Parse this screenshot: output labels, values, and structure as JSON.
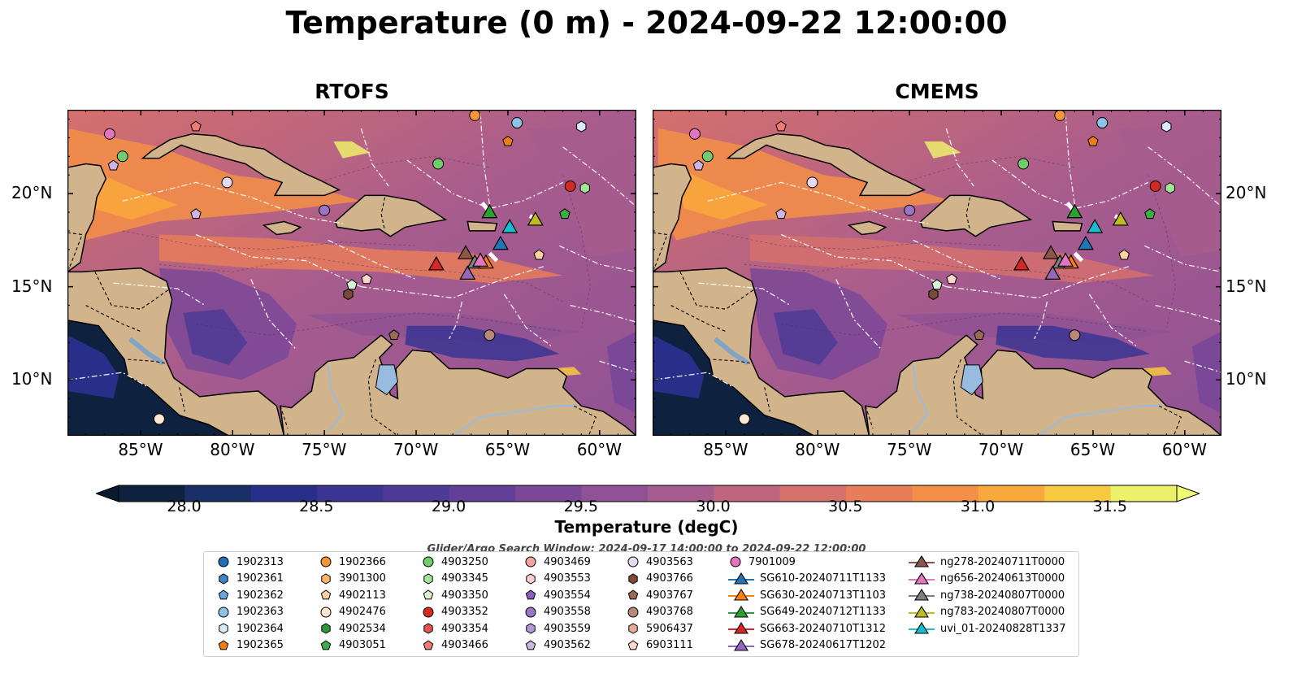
{
  "title": "Temperature (0 m) - 2024-09-22 12:00:00",
  "panels": [
    {
      "title": "RTOFS"
    },
    {
      "title": "CMEMS"
    }
  ],
  "axes": {
    "lon_ticks": [
      "85°W",
      "80°W",
      "75°W",
      "70°W",
      "65°W",
      "60°W"
    ],
    "lat_ticks": [
      "20°N",
      "15°N",
      "10°N"
    ]
  },
  "colorbar": {
    "label": "Temperature (degC)",
    "min": 28.0,
    "max": 31.5,
    "ticks": [
      "28.0",
      "28.5",
      "29.0",
      "29.5",
      "30.0",
      "30.5",
      "31.0",
      "31.5"
    ],
    "colors": [
      "#0e2240",
      "#1a2f66",
      "#272f88",
      "#3a3593",
      "#4e3b97",
      "#643f98",
      "#7b4898",
      "#905294",
      "#a75c8e",
      "#bf6580",
      "#d5706d",
      "#e87d5a",
      "#f48f47",
      "#f9a83c",
      "#f7c940",
      "#edf06b"
    ]
  },
  "search_window": "Glider/Argo Search Window: 2024-09-17 14:00:00 to 2024-09-22 12:00:00",
  "legend": {
    "argo": [
      {
        "label": "1902313",
        "marker": "circle",
        "color": "#1f6fb4"
      },
      {
        "label": "1902361",
        "marker": "hexagon",
        "color": "#3f86c6"
      },
      {
        "label": "1902362",
        "marker": "pentagon",
        "color": "#6aa6dc"
      },
      {
        "label": "1902363",
        "marker": "circle",
        "color": "#8ec3e8"
      },
      {
        "label": "1902364",
        "marker": "hexagon",
        "color": "#d7ebf8"
      },
      {
        "label": "1902365",
        "marker": "pentagon",
        "color": "#f07d12"
      },
      {
        "label": "1902366",
        "marker": "circle",
        "color": "#f7953a"
      },
      {
        "label": "3901300",
        "marker": "hexagon",
        "color": "#fbb46a"
      },
      {
        "label": "4902113",
        "marker": "pentagon",
        "color": "#fdd0a2"
      },
      {
        "label": "4902476",
        "marker": "circle",
        "color": "#fde8cf"
      },
      {
        "label": "4902534",
        "marker": "hexagon",
        "color": "#2a9a36"
      },
      {
        "label": "4903051",
        "marker": "pentagon",
        "color": "#3cae46"
      },
      {
        "label": "4903250",
        "marker": "circle",
        "color": "#6fce6a"
      },
      {
        "label": "4903345",
        "marker": "hexagon",
        "color": "#a3e49a"
      },
      {
        "label": "4903350",
        "marker": "pentagon",
        "color": "#d9f5cf"
      },
      {
        "label": "4903352",
        "marker": "circle",
        "color": "#d42a26"
      },
      {
        "label": "4903354",
        "marker": "hexagon",
        "color": "#e25454"
      },
      {
        "label": "4903466",
        "marker": "pentagon",
        "color": "#ef7a76"
      },
      {
        "label": "4903469",
        "marker": "circle",
        "color": "#f5a3a0"
      },
      {
        "label": "4903553",
        "marker": "hexagon",
        "color": "#fbcfcd"
      },
      {
        "label": "4903554",
        "marker": "pentagon",
        "color": "#8c5fba"
      },
      {
        "label": "4903558",
        "marker": "circle",
        "color": "#9c74c6"
      },
      {
        "label": "4903559",
        "marker": "hexagon",
        "color": "#b596d6"
      },
      {
        "label": "4903562",
        "marker": "pentagon",
        "color": "#cdb5e4"
      },
      {
        "label": "4903563",
        "marker": "circle",
        "color": "#e6d9f2"
      },
      {
        "label": "4903766",
        "marker": "hexagon",
        "color": "#7a4a36"
      },
      {
        "label": "4903767",
        "marker": "pentagon",
        "color": "#996a56"
      },
      {
        "label": "4903768",
        "marker": "circle",
        "color": "#b98878"
      },
      {
        "label": "5906437",
        "marker": "hexagon",
        "color": "#e6aa99"
      },
      {
        "label": "6903111",
        "marker": "pentagon",
        "color": "#fad7c9"
      },
      {
        "label": "7901009",
        "marker": "circle",
        "color": "#e374c2"
      }
    ],
    "gliders": [
      {
        "label": "SG610-20240711T1133",
        "color": "#1f77b4"
      },
      {
        "label": "SG630-20240713T1103",
        "color": "#ff7f0e"
      },
      {
        "label": "SG649-20240712T1133",
        "color": "#2ca02c"
      },
      {
        "label": "SG663-20240710T1312",
        "color": "#d62728"
      },
      {
        "label": "SG678-20240617T1202",
        "color": "#9467bd"
      },
      {
        "label": "ng278-20240711T0000",
        "color": "#8c564b"
      },
      {
        "label": "ng656-20240613T0000",
        "color": "#e377c2"
      },
      {
        "label": "ng738-20240807T0000",
        "color": "#7f7f7f"
      },
      {
        "label": "ng783-20240807T0000",
        "color": "#bcbd22"
      },
      {
        "label": "uvi_01-20240828T1337",
        "color": "#17becf"
      }
    ]
  },
  "map": {
    "lon_range": [
      -89,
      -58
    ],
    "lat_range": [
      7,
      24.5
    ],
    "land_color": "#d2b48c",
    "lake_color": "#99bbe0",
    "argo_positions": [
      {
        "id": "1902363",
        "lon": -64.5,
        "lat": 23.8
      },
      {
        "id": "1902364",
        "lon": -61.0,
        "lat": 23.6
      },
      {
        "id": "1902366",
        "lon": -66.8,
        "lat": 24.2
      },
      {
        "id": "1902365",
        "lon": -65.0,
        "lat": 22.8
      },
      {
        "id": "4903250",
        "lon": -68.8,
        "lat": 21.6
      },
      {
        "id": "4903352",
        "lon": -61.6,
        "lat": 20.4
      },
      {
        "id": "4903345",
        "lon": -60.8,
        "lat": 20.3
      },
      {
        "id": "4903051",
        "lon": -61.9,
        "lat": 18.9
      },
      {
        "id": "4903558",
        "lon": -75.0,
        "lat": 19.1
      },
      {
        "id": "4903562",
        "lon": -82.0,
        "lat": 18.9
      },
      {
        "id": "4903563",
        "lon": -80.3,
        "lat": 20.6
      },
      {
        "id": "7901009",
        "lon": -86.7,
        "lat": 23.2
      },
      {
        "id": "4903250",
        "lon": -86.0,
        "lat": 22.0
      },
      {
        "id": "4903562",
        "lon": -86.5,
        "lat": 21.5
      },
      {
        "id": "4903466",
        "lon": -82.0,
        "lat": 23.6
      },
      {
        "id": "4903350",
        "lon": -73.5,
        "lat": 15.1
      },
      {
        "id": "6903111",
        "lon": -72.7,
        "lat": 15.4
      },
      {
        "id": "4903766",
        "lon": -73.7,
        "lat": 14.6
      },
      {
        "id": "4903768",
        "lon": -66.0,
        "lat": 12.4
      },
      {
        "id": "4903767",
        "lon": -71.2,
        "lat": 12.4
      },
      {
        "id": "4902113",
        "lon": -63.3,
        "lat": 16.7
      },
      {
        "id": "4902476",
        "lon": -84.0,
        "lat": 7.9
      }
    ],
    "glider_positions": [
      {
        "id": "SG649-20240712T1133",
        "lon": -66.0,
        "lat": 19.0
      },
      {
        "id": "uvi_01-20240828T1337",
        "lon": -64.9,
        "lat": 18.2
      },
      {
        "id": "ng783-20240807T0000",
        "lon": -63.5,
        "lat": 18.6
      },
      {
        "id": "SG610-20240711T1133",
        "lon": -65.4,
        "lat": 17.3
      },
      {
        "id": "ng278-20240711T0000",
        "lon": -67.3,
        "lat": 16.8
      },
      {
        "id": "ng738-20240807T0000",
        "lon": -66.8,
        "lat": 16.3
      },
      {
        "id": "SG630-20240713T1103",
        "lon": -66.2,
        "lat": 16.3
      },
      {
        "id": "ng656-20240613T0000",
        "lon": -66.5,
        "lat": 16.4
      },
      {
        "id": "SG663-20240710T1312",
        "lon": -68.9,
        "lat": 16.2
      },
      {
        "id": "SG678-20240617T1202",
        "lon": -67.2,
        "lat": 15.7
      }
    ]
  }
}
